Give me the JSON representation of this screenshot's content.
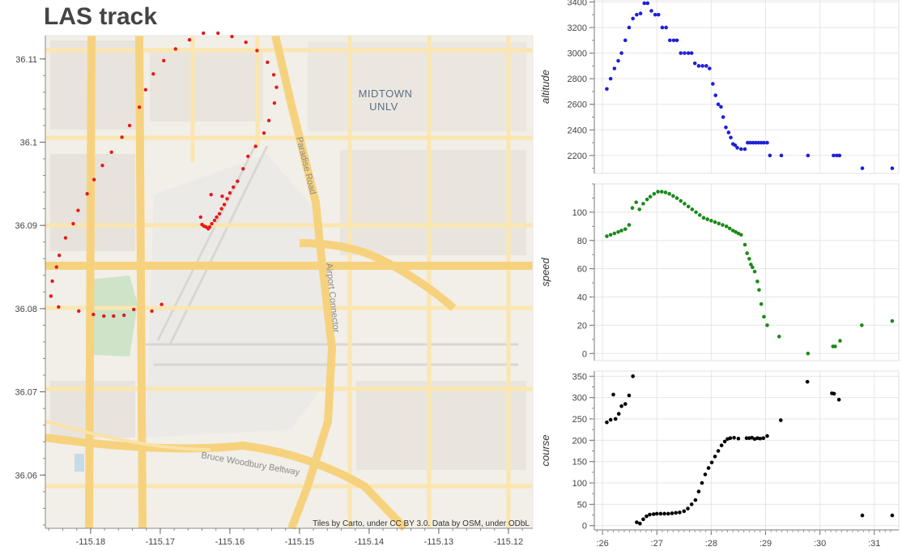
{
  "title": "LAS track",
  "attribution": "Tiles by Carto, under CC BY 3.0. Data by OSM, under ODbL",
  "map_labels": {
    "midtown": "MIDTOWN",
    "unlv": "UNLV",
    "paradise": "Paradise Road",
    "airport": "Airport Connector",
    "beltway": "Bruce Woodbury Beltway"
  },
  "colors": {
    "track": "#e41a1c",
    "altitude": "#1f1fd6",
    "speed": "#1a8a1a",
    "course": "#000000"
  },
  "chart_data": [
    {
      "type": "scatter",
      "name": "map",
      "xlabel": "",
      "ylabel": "",
      "xlim": [
        -115.1865,
        -115.1165
      ],
      "ylim": [
        36.0536,
        36.1128
      ],
      "xticks": [
        -115.18,
        -115.17,
        -115.16,
        -115.15,
        -115.14,
        -115.13,
        -115.12
      ],
      "xtick_labels": [
        "-115.18",
        "-115.17",
        "-115.16",
        "-115.15",
        "-115.14",
        "-115.13",
        "-115.12"
      ],
      "yticks": [
        36.06,
        36.07,
        36.08,
        36.09,
        36.1,
        36.11
      ],
      "ytick_labels": [
        "36.06",
        "36.07",
        "36.08",
        "36.09",
        "36.1",
        "36.11"
      ],
      "points": [
        [
          -115.1698,
          36.0805
        ],
        [
          -115.1712,
          36.0797
        ],
        [
          -115.1738,
          36.0799
        ],
        [
          -115.1752,
          36.0792
        ],
        [
          -115.1767,
          36.0791
        ],
        [
          -115.1781,
          36.0791
        ],
        [
          -115.1796,
          36.0793
        ],
        [
          -115.1817,
          36.0797
        ],
        [
          -115.1846,
          36.0802
        ],
        [
          -115.1857,
          36.0815
        ],
        [
          -115.1855,
          36.0833
        ],
        [
          -115.1849,
          36.085
        ],
        [
          -115.1845,
          36.0864
        ],
        [
          -115.1836,
          36.0885
        ],
        [
          -115.1825,
          36.0902
        ],
        [
          -115.1818,
          36.0918
        ],
        [
          -115.1805,
          36.0938
        ],
        [
          -115.1795,
          36.0955
        ],
        [
          -115.1783,
          36.0972
        ],
        [
          -115.177,
          36.0988
        ],
        [
          -115.1755,
          36.1006
        ],
        [
          -115.1744,
          36.102
        ],
        [
          -115.173,
          36.1042
        ],
        [
          -115.1721,
          36.1063
        ],
        [
          -115.171,
          36.1082
        ],
        [
          -115.1695,
          36.1098
        ],
        [
          -115.1678,
          36.1112
        ],
        [
          -115.1658,
          36.1123
        ],
        [
          -115.1638,
          36.1131
        ],
        [
          -115.1617,
          36.1131
        ],
        [
          -115.1597,
          36.1127
        ],
        [
          -115.1577,
          36.112
        ],
        [
          -115.1561,
          36.111
        ],
        [
          -115.1546,
          36.1096
        ],
        [
          -115.1537,
          36.1081
        ],
        [
          -115.1533,
          36.1066
        ],
        [
          -115.1536,
          36.1047
        ],
        [
          -115.1544,
          36.1026
        ],
        [
          -115.1551,
          36.1011
        ],
        [
          -115.1563,
          36.0995
        ],
        [
          -115.1574,
          36.0983
        ],
        [
          -115.1581,
          36.0968
        ],
        [
          -115.1589,
          36.0953
        ],
        [
          -115.1595,
          36.0946
        ],
        [
          -115.16,
          36.0939
        ],
        [
          -115.1604,
          36.0932
        ],
        [
          -115.1608,
          36.0925
        ],
        [
          -115.1612,
          36.092
        ],
        [
          -115.1615,
          36.0914
        ],
        [
          -115.1619,
          36.091
        ],
        [
          -115.1622,
          36.0906
        ],
        [
          -115.1626,
          36.0902
        ],
        [
          -115.1629,
          36.0898
        ],
        [
          -115.1631,
          36.0896
        ],
        [
          -115.1634,
          36.0898
        ],
        [
          -115.1637,
          36.0899
        ],
        [
          -115.164,
          36.0901
        ],
        [
          -115.1627,
          36.0937
        ],
        [
          -115.1642,
          36.091
        ],
        [
          -115.1611,
          36.0935
        ]
      ]
    },
    {
      "type": "scatter",
      "name": "altitude",
      "ylabel": "altitude",
      "xlim": [
        25.85,
        31.45
      ],
      "ylim": [
        2060,
        3415
      ],
      "yticks": [
        2200,
        2400,
        2600,
        2800,
        3000,
        3200,
        3400
      ],
      "points": [
        [
          26.08,
          2720
        ],
        [
          26.15,
          2800
        ],
        [
          26.22,
          2880
        ],
        [
          26.29,
          2940
        ],
        [
          26.35,
          3000
        ],
        [
          26.42,
          3100
        ],
        [
          26.49,
          3200
        ],
        [
          26.56,
          3270
        ],
        [
          26.63,
          3300
        ],
        [
          26.7,
          3310
        ],
        [
          26.77,
          3390
        ],
        [
          26.83,
          3390
        ],
        [
          26.9,
          3330
        ],
        [
          26.97,
          3300
        ],
        [
          27.03,
          3300
        ],
        [
          27.1,
          3200
        ],
        [
          27.17,
          3200
        ],
        [
          27.24,
          3100
        ],
        [
          27.31,
          3100
        ],
        [
          27.37,
          3100
        ],
        [
          27.44,
          3000
        ],
        [
          27.51,
          3000
        ],
        [
          27.58,
          3000
        ],
        [
          27.64,
          3000
        ],
        [
          27.7,
          2920
        ],
        [
          27.77,
          2900
        ],
        [
          27.84,
          2900
        ],
        [
          27.91,
          2900
        ],
        [
          27.97,
          2880
        ],
        [
          28.03,
          2760
        ],
        [
          28.08,
          2670
        ],
        [
          28.13,
          2600
        ],
        [
          28.18,
          2580
        ],
        [
          28.22,
          2500
        ],
        [
          28.27,
          2420
        ],
        [
          28.32,
          2380
        ],
        [
          28.36,
          2340
        ],
        [
          28.4,
          2290
        ],
        [
          28.44,
          2280
        ],
        [
          28.48,
          2260
        ],
        [
          28.55,
          2250
        ],
        [
          28.62,
          2250
        ],
        [
          28.67,
          2300
        ],
        [
          28.72,
          2300
        ],
        [
          28.77,
          2300
        ],
        [
          28.82,
          2300
        ],
        [
          28.87,
          2300
        ],
        [
          28.92,
          2300
        ],
        [
          28.97,
          2300
        ],
        [
          29.03,
          2300
        ],
        [
          29.08,
          2200
        ],
        [
          29.29,
          2200
        ],
        [
          29.78,
          2200
        ],
        [
          30.25,
          2200
        ],
        [
          30.31,
          2200
        ],
        [
          30.36,
          2200
        ],
        [
          30.78,
          2100
        ],
        [
          31.33,
          2100
        ]
      ]
    },
    {
      "type": "scatter",
      "name": "speed",
      "ylabel": "speed",
      "xlim": [
        25.85,
        31.45
      ],
      "ylim": [
        -5,
        120
      ],
      "yticks": [
        0,
        20,
        40,
        60,
        80,
        100
      ],
      "points": [
        [
          26.08,
          83
        ],
        [
          26.15,
          84
        ],
        [
          26.22,
          85
        ],
        [
          26.29,
          86
        ],
        [
          26.35,
          87
        ],
        [
          26.42,
          88
        ],
        [
          26.49,
          91
        ],
        [
          26.55,
          103
        ],
        [
          26.62,
          107
        ],
        [
          26.68,
          102
        ],
        [
          26.75,
          106
        ],
        [
          26.82,
          109
        ],
        [
          26.88,
          111
        ],
        [
          26.95,
          113
        ],
        [
          27.02,
          114.5
        ],
        [
          27.09,
          114.5
        ],
        [
          27.16,
          114
        ],
        [
          27.23,
          113
        ],
        [
          27.3,
          111.5
        ],
        [
          27.37,
          110
        ],
        [
          27.44,
          108
        ],
        [
          27.51,
          106
        ],
        [
          27.58,
          104
        ],
        [
          27.65,
          102
        ],
        [
          27.72,
          100
        ],
        [
          27.79,
          98
        ],
        [
          27.86,
          96
        ],
        [
          27.93,
          95
        ],
        [
          28.0,
          94
        ],
        [
          28.07,
          93
        ],
        [
          28.14,
          92
        ],
        [
          28.21,
          91
        ],
        [
          28.28,
          90
        ],
        [
          28.34,
          88.5
        ],
        [
          28.4,
          87
        ],
        [
          28.45,
          86
        ],
        [
          28.5,
          85
        ],
        [
          28.55,
          84
        ],
        [
          28.62,
          77
        ],
        [
          28.66,
          71
        ],
        [
          28.7,
          67
        ],
        [
          28.73,
          63
        ],
        [
          28.76,
          61
        ],
        [
          28.8,
          58
        ],
        [
          28.85,
          51
        ],
        [
          28.88,
          45
        ],
        [
          28.92,
          35
        ],
        [
          28.97,
          26
        ],
        [
          29.03,
          20
        ],
        [
          29.25,
          12
        ],
        [
          29.78,
          0
        ],
        [
          30.24,
          5
        ],
        [
          30.28,
          5
        ],
        [
          30.37,
          9
        ],
        [
          30.77,
          20
        ],
        [
          31.33,
          23
        ]
      ]
    },
    {
      "type": "scatter",
      "name": "course",
      "ylabel": "course",
      "xlim": [
        25.85,
        31.45
      ],
      "ylim": [
        -10,
        362
      ],
      "yticks": [
        0,
        50,
        100,
        150,
        200,
        250,
        300,
        350
      ],
      "xticks": [
        26,
        27,
        28,
        29,
        30,
        31
      ],
      "xtick_labels": [
        ":26",
        ":27",
        ":28",
        ":29",
        ":30",
        ":31"
      ],
      "points": [
        [
          26.08,
          242
        ],
        [
          26.15,
          248
        ],
        [
          26.2,
          307
        ],
        [
          26.24,
          250
        ],
        [
          26.3,
          262
        ],
        [
          26.35,
          280
        ],
        [
          26.42,
          285
        ],
        [
          26.49,
          305
        ],
        [
          26.56,
          350
        ],
        [
          26.63,
          8
        ],
        [
          26.69,
          5
        ],
        [
          26.75,
          15
        ],
        [
          26.81,
          22
        ],
        [
          26.87,
          26
        ],
        [
          26.94,
          27
        ],
        [
          27.0,
          28
        ],
        [
          27.07,
          28
        ],
        [
          27.14,
          28
        ],
        [
          27.21,
          28
        ],
        [
          27.28,
          29
        ],
        [
          27.35,
          30
        ],
        [
          27.42,
          31
        ],
        [
          27.5,
          34
        ],
        [
          27.57,
          40
        ],
        [
          27.64,
          50
        ],
        [
          27.71,
          60
        ],
        [
          27.77,
          80
        ],
        [
          27.83,
          100
        ],
        [
          27.89,
          120
        ],
        [
          27.95,
          135
        ],
        [
          28.01,
          148
        ],
        [
          28.07,
          162
        ],
        [
          28.13,
          175
        ],
        [
          28.19,
          188
        ],
        [
          28.25,
          197
        ],
        [
          28.3,
          203
        ],
        [
          28.35,
          205
        ],
        [
          28.42,
          206
        ],
        [
          28.5,
          204
        ],
        [
          28.65,
          205
        ],
        [
          28.7,
          205
        ],
        [
          28.75,
          206
        ],
        [
          28.8,
          203
        ],
        [
          28.85,
          205
        ],
        [
          28.9,
          204
        ],
        [
          28.96,
          205
        ],
        [
          29.03,
          210
        ],
        [
          29.28,
          247
        ],
        [
          29.77,
          337
        ],
        [
          30.22,
          310
        ],
        [
          30.26,
          309
        ],
        [
          30.35,
          295
        ],
        [
          30.78,
          24
        ],
        [
          31.33,
          24
        ]
      ]
    }
  ]
}
